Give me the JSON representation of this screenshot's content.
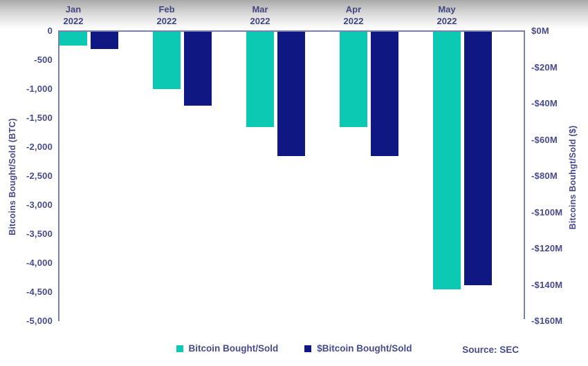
{
  "chart_data": {
    "type": "bar",
    "categories": [
      {
        "month": "Jan",
        "year": "2022"
      },
      {
        "month": "Feb",
        "year": "2022"
      },
      {
        "month": "Mar",
        "year": "2022"
      },
      {
        "month": "Apr",
        "year": "2022"
      },
      {
        "month": "May",
        "year": "2022"
      }
    ],
    "series": [
      {
        "name": "Bitcoin Bought/Sold",
        "axis": "left",
        "unit": "BTC",
        "color": "#0cc9b4",
        "values": [
          -250,
          -1000,
          -1650,
          -1650,
          -4450
        ]
      },
      {
        "name": "$Bitcoin Bought/Sold",
        "axis": "right",
        "unit": "$M",
        "color": "#0e1782",
        "values": [
          -10,
          -41,
          -69,
          -69,
          -140
        ]
      }
    ],
    "left_axis": {
      "label": "Bitcoins Bought/Sold (BTC)",
      "range": [
        0,
        -5000
      ],
      "ticks": [
        "0",
        "-500",
        "-1,000",
        "-1,500",
        "-2,000",
        "-2,500",
        "-3,000",
        "-3,500",
        "-4,000",
        "-4,500",
        "-5,000"
      ]
    },
    "right_axis": {
      "label": "Bitcoins Bouhgt/Sold ($)",
      "range": [
        0,
        -160
      ],
      "ticks": [
        "$0M",
        "-$20M",
        "-$40M",
        "-$60M",
        "-$80M",
        "-$100M",
        "-$120M",
        "-$140M",
        "-$160M"
      ]
    },
    "legend": [
      "Bitcoin Bought/Sold",
      "$Bitcoin Bought/Sold"
    ],
    "source": "Source: SEC",
    "layout_hints": {
      "grid": "off",
      "legend_position": "bottom-center",
      "bar_direction": "downward-from-zero"
    }
  },
  "colors": {
    "teal": "#0cc9b4",
    "navy": "#0e1782",
    "text": "#474b8c",
    "axis_line": "#7c81ab"
  }
}
